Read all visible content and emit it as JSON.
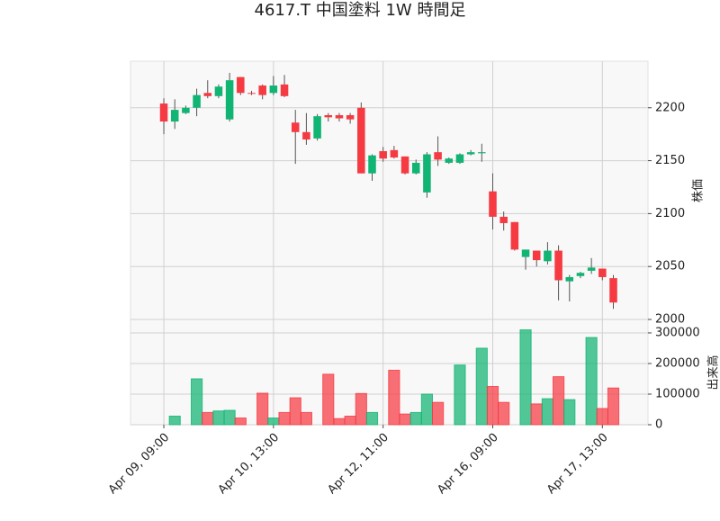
{
  "chart_data": {
    "type": "candlestick",
    "title": "4617.T 中国塗料 1W 時間足",
    "categories": [
      "Apr 09, 09:00",
      null,
      null,
      null,
      null,
      null,
      null,
      null,
      null,
      null,
      "Apr 10, 13:00",
      null,
      null,
      null,
      null,
      null,
      null,
      null,
      null,
      null,
      "Apr 12, 11:00",
      null,
      null,
      null,
      null,
      null,
      null,
      null,
      null,
      null,
      "Apr 16, 09:00",
      null,
      null,
      null,
      null,
      null,
      null,
      null,
      null,
      null,
      "Apr 17, 13:00",
      null
    ],
    "open": [
      2204,
      2187,
      2195,
      2200,
      2214,
      2211,
      2189,
      2229,
      2214,
      2221,
      2214,
      2222,
      2186,
      2177,
      2171,
      2193,
      2193,
      2193,
      2200,
      2138,
      2159,
      2160,
      2154,
      2138,
      2120,
      2158,
      2148,
      2148,
      2156,
      2157,
      2121,
      2097,
      2092,
      2059,
      2065,
      2055,
      2065,
      2036,
      2041,
      2046,
      2048,
      2039
    ],
    "high": [
      2209,
      2208,
      2202,
      2218,
      2226,
      2222,
      2233,
      2229,
      2216,
      2222,
      2230,
      2231,
      2198,
      2195,
      2194,
      2195,
      2195,
      2195,
      2205,
      2156,
      2163,
      2164,
      2154,
      2151,
      2158,
      2173,
      2153,
      2157,
      2160,
      2166,
      2138,
      2102,
      2092,
      2066,
      2065,
      2073,
      2070,
      2042,
      2045,
      2058,
      2048,
      2042
    ],
    "low": [
      2175,
      2180,
      2194,
      2192,
      2209,
      2209,
      2187,
      2212,
      2212,
      2208,
      2212,
      2210,
      2147,
      2165,
      2169,
      2187,
      2187,
      2185,
      2138,
      2131,
      2149,
      2152,
      2137,
      2137,
      2115,
      2145,
      2147,
      2147,
      2155,
      2149,
      2085,
      2084,
      2065,
      2047,
      2050,
      2052,
      2018,
      2017,
      2039,
      2043,
      2037,
      2010
    ],
    "close": [
      2187,
      2198,
      2200,
      2212,
      2211,
      2220,
      2226,
      2214,
      2214,
      2212,
      2221,
      2211,
      2177,
      2170,
      2192,
      2191,
      2190,
      2189,
      2138,
      2155,
      2152,
      2153,
      2138,
      2148,
      2156,
      2151,
      2152,
      2156,
      2158,
      2158,
      2097,
      2091,
      2066,
      2066,
      2056,
      2065,
      2037,
      2040,
      2044,
      2049,
      2040,
      2016
    ],
    "volume": [
      0,
      28000,
      0,
      150000,
      40000,
      45000,
      47000,
      22000,
      0,
      103000,
      22000,
      40000,
      88000,
      40000,
      0,
      165000,
      20000,
      28000,
      102000,
      40000,
      0,
      178000,
      35000,
      40000,
      100000,
      73000,
      0,
      195000,
      0,
      250000,
      125000,
      73000,
      0,
      310000,
      68000,
      85000,
      157000,
      82000,
      0,
      285000,
      53000,
      120000
    ],
    "up_color": "#10b473",
    "down_color": "#f63a42",
    "ylim": [
      2000,
      2244
    ],
    "yticks": [
      2000,
      2050,
      2100,
      2150,
      2200
    ],
    "ylabel": "株価",
    "volume_ylim": [
      0,
      344000
    ],
    "volume_yticks": [
      0,
      100000,
      200000,
      300000
    ],
    "volume_ylabel": "出来高",
    "grid": true
  }
}
